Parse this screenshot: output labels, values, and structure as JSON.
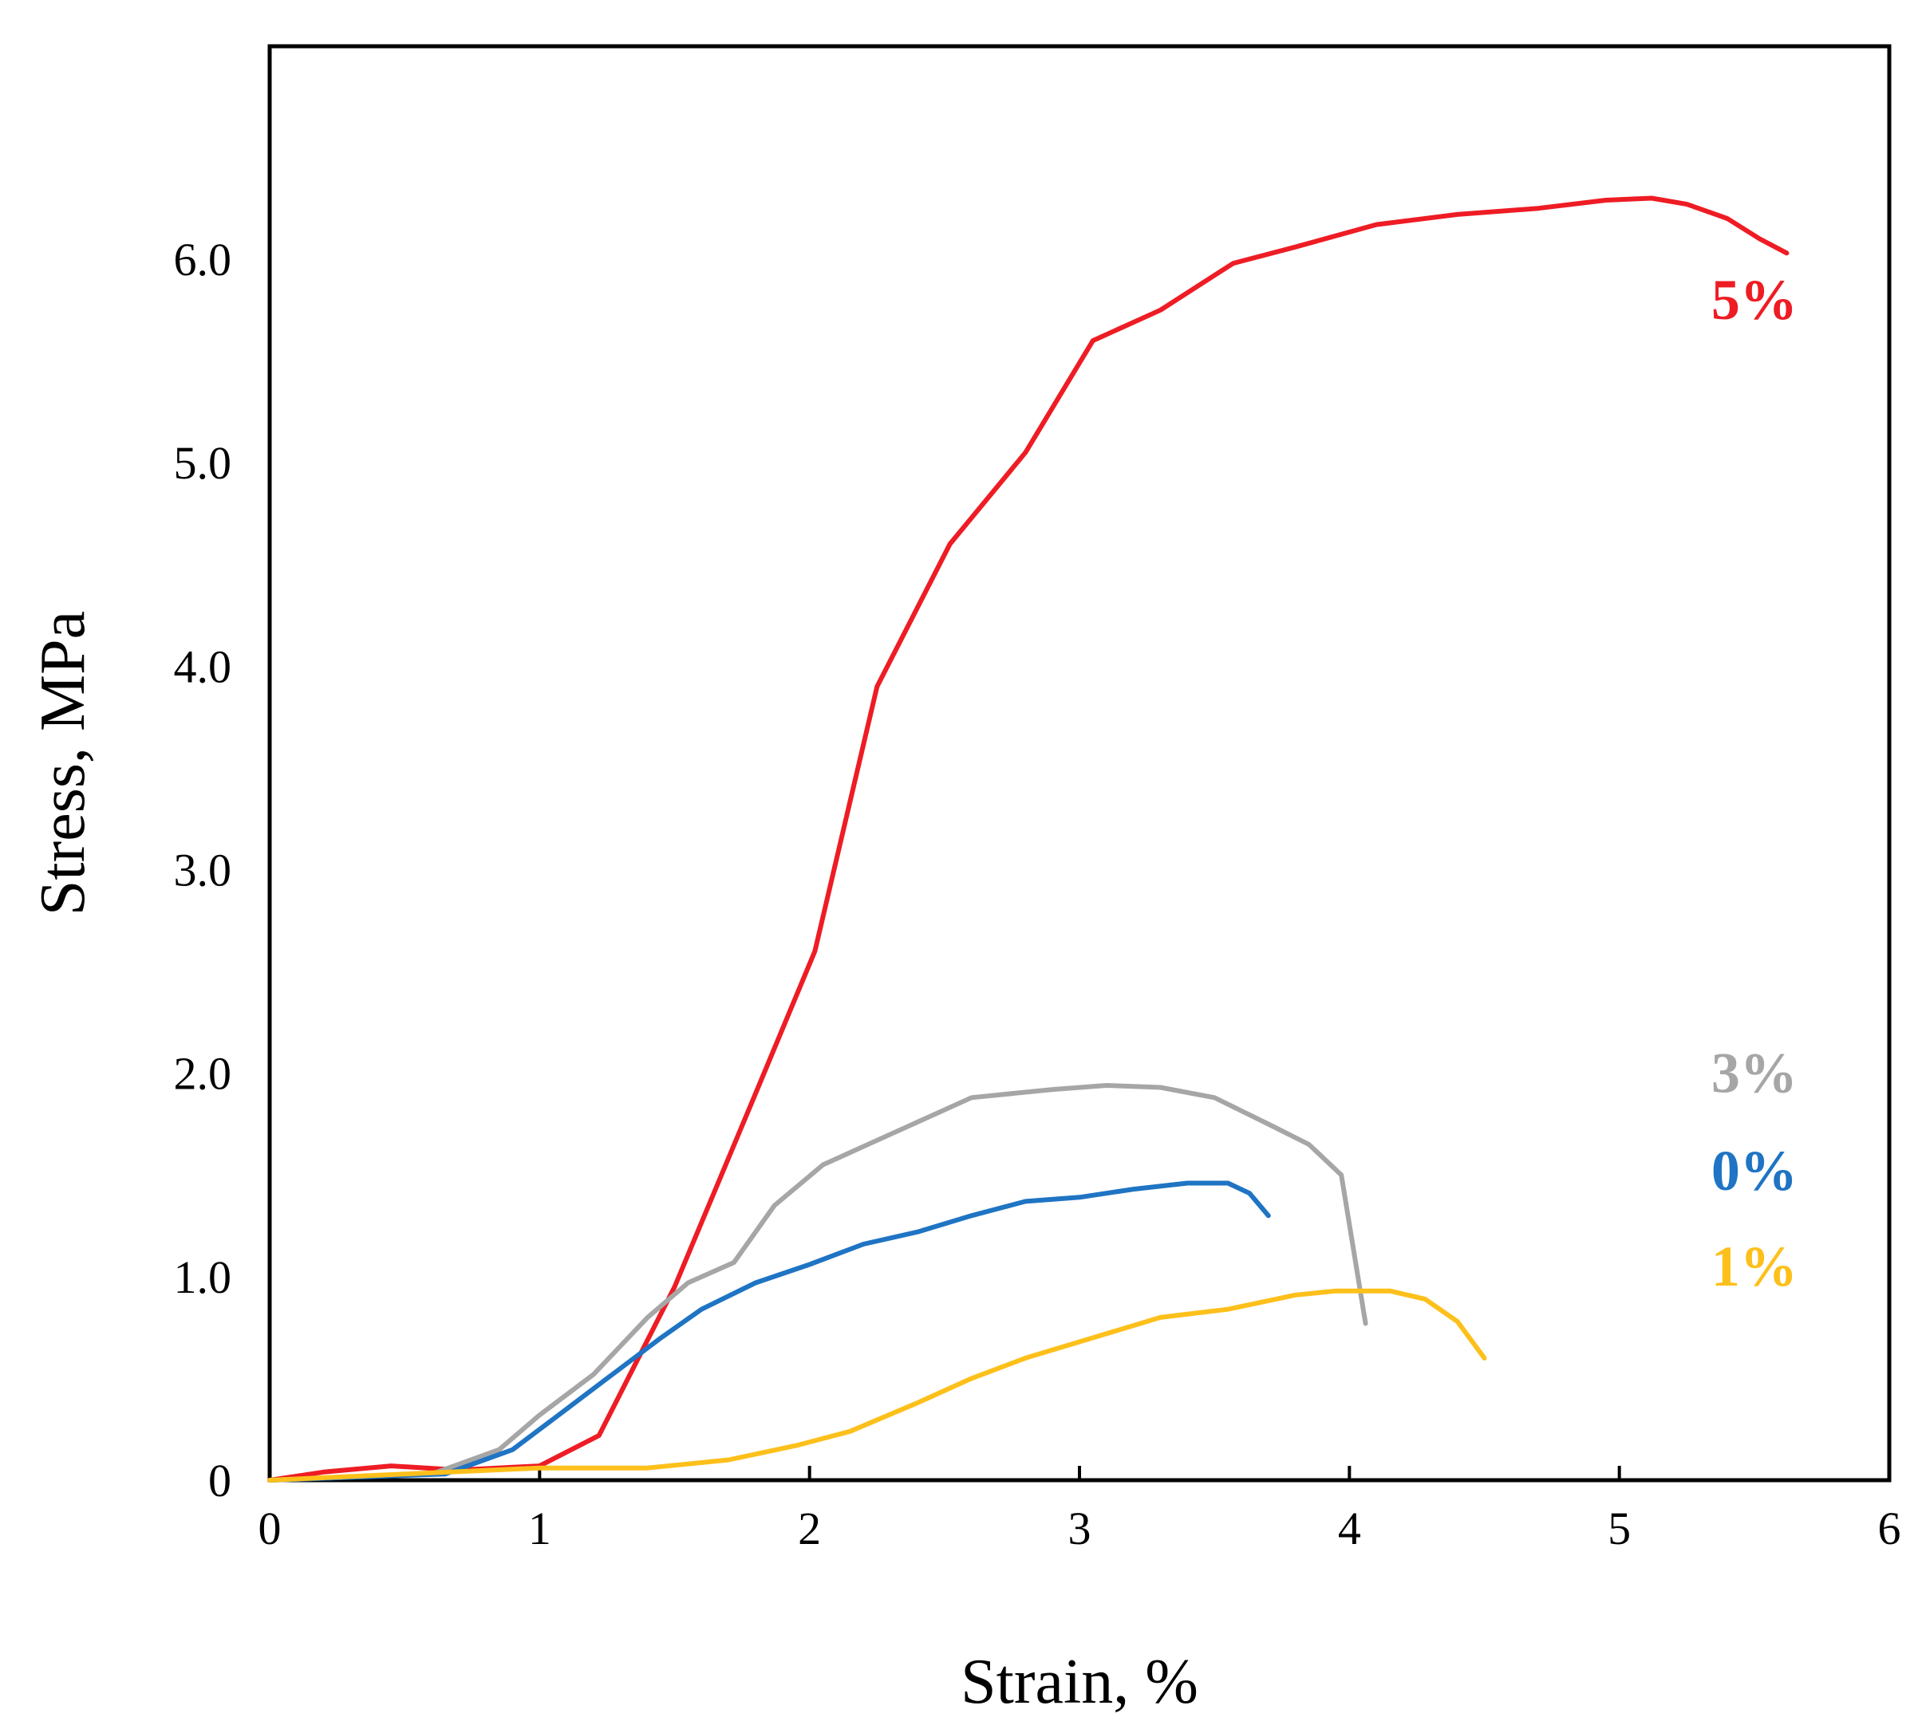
{
  "chart_data": {
    "type": "line",
    "title": "",
    "xlabel": "Strain, %",
    "ylabel": "Stress, MPa",
    "xlim": [
      0,
      6
    ],
    "ylim": [
      0,
      7.0
    ],
    "grid": false,
    "x_ticks": [
      0,
      1,
      2,
      3,
      4,
      5,
      6
    ],
    "x_tick_labels": [
      "0",
      "1",
      "2",
      "3",
      "4",
      "5",
      "6"
    ],
    "y_ticks": [
      0,
      1,
      2,
      3,
      4,
      5,
      6
    ],
    "y_tick_labels": [
      "0",
      "1.0",
      "2.0",
      "3.0",
      "4.0",
      "5.0",
      "6.0"
    ],
    "series": [
      {
        "name": "5%",
        "color": "#ee1c24",
        "label_at": [
          5.5,
          5.8
        ],
        "points": [
          [
            0,
            0
          ],
          [
            0.2,
            0.04
          ],
          [
            0.45,
            0.07
          ],
          [
            0.7,
            0.05
          ],
          [
            1.0,
            0.07
          ],
          [
            1.22,
            0.22
          ],
          [
            1.5,
            0.95
          ],
          [
            1.8,
            1.9
          ],
          [
            2.02,
            2.6
          ],
          [
            2.25,
            3.9
          ],
          [
            2.52,
            4.6
          ],
          [
            2.8,
            5.05
          ],
          [
            3.05,
            5.6
          ],
          [
            3.3,
            5.75
          ],
          [
            3.57,
            5.98
          ],
          [
            3.8,
            6.06
          ],
          [
            4.1,
            6.17
          ],
          [
            4.4,
            6.22
          ],
          [
            4.7,
            6.25
          ],
          [
            4.95,
            6.29
          ],
          [
            5.12,
            6.3
          ],
          [
            5.25,
            6.27
          ],
          [
            5.4,
            6.2
          ],
          [
            5.52,
            6.1
          ],
          [
            5.62,
            6.03
          ]
        ]
      },
      {
        "name": "3%",
        "color": "#a6a6a6",
        "label_at": [
          5.5,
          2.0
        ],
        "points": [
          [
            0,
            0
          ],
          [
            0.6,
            0.03
          ],
          [
            0.85,
            0.15
          ],
          [
            1.0,
            0.32
          ],
          [
            1.2,
            0.52
          ],
          [
            1.4,
            0.8
          ],
          [
            1.55,
            0.97
          ],
          [
            1.72,
            1.07
          ],
          [
            1.87,
            1.35
          ],
          [
            2.05,
            1.55
          ],
          [
            2.3,
            1.7
          ],
          [
            2.6,
            1.88
          ],
          [
            2.9,
            1.92
          ],
          [
            3.1,
            1.94
          ],
          [
            3.3,
            1.93
          ],
          [
            3.5,
            1.88
          ],
          [
            3.7,
            1.75
          ],
          [
            3.85,
            1.65
          ],
          [
            3.97,
            1.5
          ],
          [
            4.06,
            0.77
          ]
        ]
      },
      {
        "name": "0%",
        "color": "#1f74c3",
        "label_at": [
          5.5,
          1.52
        ],
        "points": [
          [
            0,
            0
          ],
          [
            0.65,
            0.03
          ],
          [
            0.9,
            0.15
          ],
          [
            1.05,
            0.3
          ],
          [
            1.25,
            0.5
          ],
          [
            1.45,
            0.7
          ],
          [
            1.6,
            0.84
          ],
          [
            1.8,
            0.97
          ],
          [
            2.0,
            1.06
          ],
          [
            2.2,
            1.16
          ],
          [
            2.4,
            1.22
          ],
          [
            2.6,
            1.3
          ],
          [
            2.8,
            1.37
          ],
          [
            3.0,
            1.39
          ],
          [
            3.2,
            1.43
          ],
          [
            3.4,
            1.46
          ],
          [
            3.55,
            1.46
          ],
          [
            3.63,
            1.41
          ],
          [
            3.7,
            1.3
          ]
        ]
      },
      {
        "name": "1%",
        "color": "#fdc01b",
        "label_at": [
          5.5,
          1.05
        ],
        "points": [
          [
            0,
            0
          ],
          [
            0.5,
            0.03
          ],
          [
            1.0,
            0.06
          ],
          [
            1.4,
            0.06
          ],
          [
            1.7,
            0.1
          ],
          [
            1.95,
            0.17
          ],
          [
            2.15,
            0.24
          ],
          [
            2.4,
            0.38
          ],
          [
            2.6,
            0.5
          ],
          [
            2.8,
            0.6
          ],
          [
            3.05,
            0.7
          ],
          [
            3.3,
            0.8
          ],
          [
            3.55,
            0.84
          ],
          [
            3.8,
            0.91
          ],
          [
            3.95,
            0.93
          ],
          [
            4.15,
            0.93
          ],
          [
            4.28,
            0.89
          ],
          [
            4.4,
            0.78
          ],
          [
            4.5,
            0.6
          ]
        ]
      }
    ]
  }
}
